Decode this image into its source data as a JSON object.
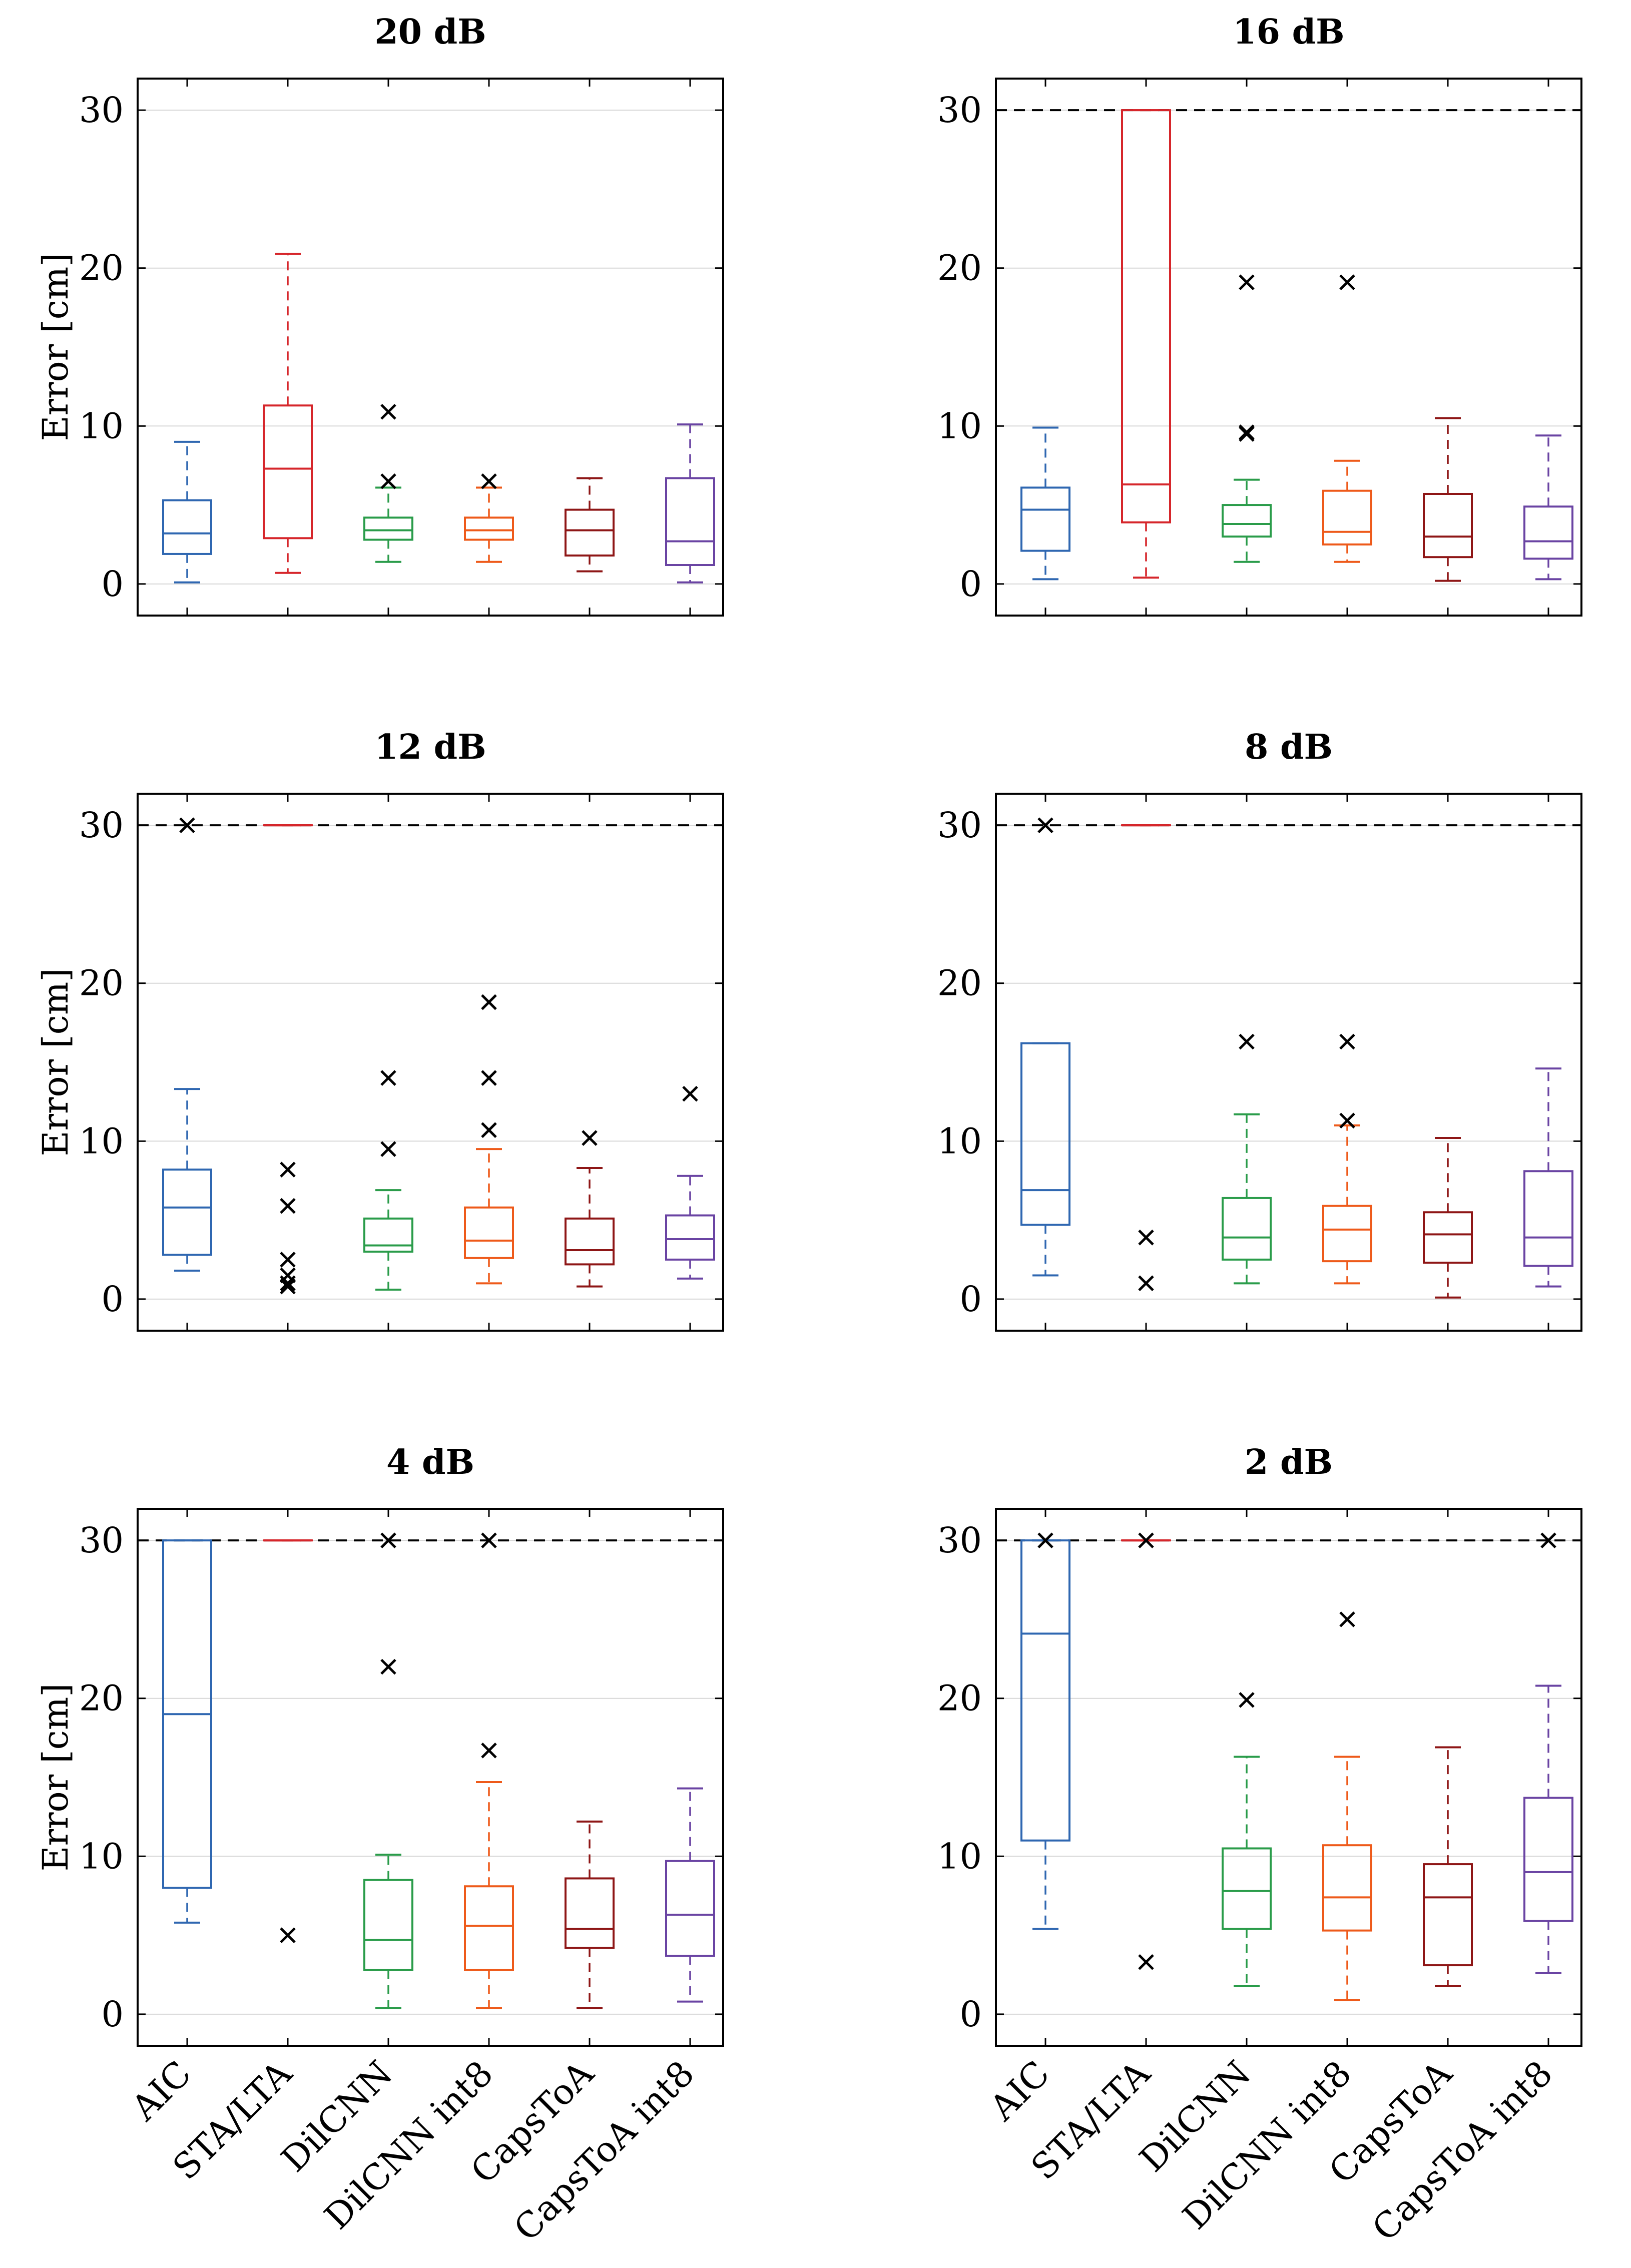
{
  "chart_data": {
    "type": "box",
    "categories": [
      "AIC",
      "STA/LTA",
      "DilCNN",
      "DilCNN int8",
      "CapsToA",
      "CapsToA int8"
    ],
    "colors": [
      "#2f67b1",
      "#d6262b",
      "#2a9c4a",
      "#ee5a1a",
      "#8e1616",
      "#6a44a3"
    ],
    "ylabel": "Error [cm]",
    "ylim": [
      -2,
      32
    ],
    "yticks": [
      0,
      10,
      20,
      30
    ],
    "clip_level": 30,
    "grid": true,
    "panels": [
      {
        "title": "20 dB",
        "clip_line": false,
        "boxes": [
          {
            "q1": 1.9,
            "median": 3.2,
            "q3": 5.3,
            "wlo": 0.1,
            "whi": 9.0,
            "outliers": []
          },
          {
            "q1": 2.9,
            "median": 7.3,
            "q3": 11.3,
            "wlo": 0.7,
            "whi": 20.9,
            "outliers": []
          },
          {
            "q1": 2.8,
            "median": 3.4,
            "q3": 4.2,
            "wlo": 1.4,
            "whi": 6.1,
            "outliers": [
              6.5,
              10.9
            ]
          },
          {
            "q1": 2.8,
            "median": 3.4,
            "q3": 4.2,
            "wlo": 1.4,
            "whi": 6.1,
            "outliers": [
              6.5
            ]
          },
          {
            "q1": 1.8,
            "median": 3.4,
            "q3": 4.7,
            "wlo": 0.8,
            "whi": 6.7,
            "outliers": []
          },
          {
            "q1": 1.2,
            "median": 2.7,
            "q3": 6.7,
            "wlo": 0.1,
            "whi": 10.1,
            "outliers": []
          }
        ]
      },
      {
        "title": "16 dB",
        "clip_line": true,
        "boxes": [
          {
            "q1": 2.1,
            "median": 4.7,
            "q3": 6.1,
            "wlo": 0.3,
            "whi": 9.9,
            "outliers": []
          },
          {
            "q1": 3.9,
            "median": 6.3,
            "q3": 30.0,
            "wlo": 0.4,
            "whi": 30.0,
            "outliers": []
          },
          {
            "q1": 3.0,
            "median": 3.8,
            "q3": 5.0,
            "wlo": 1.4,
            "whi": 6.6,
            "outliers": [
              9.5,
              9.6,
              19.1
            ]
          },
          {
            "q1": 2.5,
            "median": 3.3,
            "q3": 5.9,
            "wlo": 1.4,
            "whi": 7.8,
            "outliers": [
              19.1
            ]
          },
          {
            "q1": 1.7,
            "median": 3.0,
            "q3": 5.7,
            "wlo": 0.2,
            "whi": 10.5,
            "outliers": []
          },
          {
            "q1": 1.6,
            "median": 2.7,
            "q3": 4.9,
            "wlo": 0.3,
            "whi": 9.4,
            "outliers": []
          }
        ]
      },
      {
        "title": "12 dB",
        "clip_line": true,
        "boxes": [
          {
            "q1": 2.8,
            "median": 5.8,
            "q3": 8.2,
            "wlo": 1.8,
            "whi": 13.3,
            "outliers": [
              30.0
            ]
          },
          {
            "q1": 30.0,
            "median": 30.0,
            "q3": 30.0,
            "wlo": 30.0,
            "whi": 30.0,
            "outliers": [
              8.2,
              5.9,
              2.5,
              1.5,
              1.0,
              0.8
            ]
          },
          {
            "q1": 3.0,
            "median": 3.4,
            "q3": 5.1,
            "wlo": 0.6,
            "whi": 6.9,
            "outliers": [
              9.5,
              14.0
            ]
          },
          {
            "q1": 2.6,
            "median": 3.7,
            "q3": 5.8,
            "wlo": 1.0,
            "whi": 9.5,
            "outliers": [
              10.7,
              14.0,
              18.8
            ]
          },
          {
            "q1": 2.2,
            "median": 3.1,
            "q3": 5.1,
            "wlo": 0.8,
            "whi": 8.3,
            "outliers": [
              10.2
            ]
          },
          {
            "q1": 2.5,
            "median": 3.8,
            "q3": 5.3,
            "wlo": 1.3,
            "whi": 7.8,
            "outliers": [
              13.0
            ]
          }
        ]
      },
      {
        "title": "8 dB",
        "clip_line": true,
        "boxes": [
          {
            "q1": 4.7,
            "median": 6.9,
            "q3": 16.2,
            "wlo": 1.5,
            "whi": 16.2,
            "outliers": [
              30.0
            ]
          },
          {
            "q1": 30.0,
            "median": 30.0,
            "q3": 30.0,
            "wlo": 30.0,
            "whi": 30.0,
            "outliers": [
              3.9,
              1.0
            ]
          },
          {
            "q1": 2.5,
            "median": 3.9,
            "q3": 6.4,
            "wlo": 1.0,
            "whi": 11.7,
            "outliers": [
              16.3
            ]
          },
          {
            "q1": 2.4,
            "median": 4.4,
            "q3": 5.9,
            "wlo": 1.0,
            "whi": 11.0,
            "outliers": [
              11.3,
              16.3
            ]
          },
          {
            "q1": 2.3,
            "median": 4.1,
            "q3": 5.5,
            "wlo": 0.1,
            "whi": 10.2,
            "outliers": []
          },
          {
            "q1": 2.1,
            "median": 3.9,
            "q3": 8.1,
            "wlo": 0.8,
            "whi": 14.6,
            "outliers": []
          }
        ]
      },
      {
        "title": "4 dB",
        "clip_line": true,
        "boxes": [
          {
            "q1": 8.0,
            "median": 19.0,
            "q3": 30.0,
            "wlo": 5.8,
            "whi": 30.0,
            "outliers": []
          },
          {
            "q1": 30.0,
            "median": 30.0,
            "q3": 30.0,
            "wlo": 30.0,
            "whi": 30.0,
            "outliers": [
              5.0
            ]
          },
          {
            "q1": 2.8,
            "median": 4.7,
            "q3": 8.5,
            "wlo": 0.4,
            "whi": 10.1,
            "outliers": [
              22.0,
              30.0
            ]
          },
          {
            "q1": 2.8,
            "median": 5.6,
            "q3": 8.1,
            "wlo": 0.4,
            "whi": 14.7,
            "outliers": [
              16.7,
              30.0
            ]
          },
          {
            "q1": 4.2,
            "median": 5.4,
            "q3": 8.6,
            "wlo": 0.4,
            "whi": 12.2,
            "outliers": []
          },
          {
            "q1": 3.7,
            "median": 6.3,
            "q3": 9.7,
            "wlo": 0.8,
            "whi": 14.3,
            "outliers": []
          }
        ]
      },
      {
        "title": "2 dB",
        "clip_line": true,
        "boxes": [
          {
            "q1": 11.0,
            "median": 24.1,
            "q3": 30.0,
            "wlo": 5.4,
            "whi": 30.0,
            "outliers": [
              30.0
            ]
          },
          {
            "q1": 30.0,
            "median": 30.0,
            "q3": 30.0,
            "wlo": 30.0,
            "whi": 30.0,
            "outliers": [
              3.3,
              30.0
            ]
          },
          {
            "q1": 5.4,
            "median": 7.8,
            "q3": 10.5,
            "wlo": 1.8,
            "whi": 16.3,
            "outliers": [
              19.9
            ]
          },
          {
            "q1": 5.3,
            "median": 7.4,
            "q3": 10.7,
            "wlo": 0.9,
            "whi": 16.3,
            "outliers": [
              25.0
            ]
          },
          {
            "q1": 3.1,
            "median": 7.4,
            "q3": 9.5,
            "wlo": 1.8,
            "whi": 16.9,
            "outliers": []
          },
          {
            "q1": 5.9,
            "median": 9.0,
            "q3": 13.7,
            "wlo": 2.6,
            "whi": 20.8,
            "outliers": [
              30.0
            ]
          }
        ]
      }
    ]
  }
}
